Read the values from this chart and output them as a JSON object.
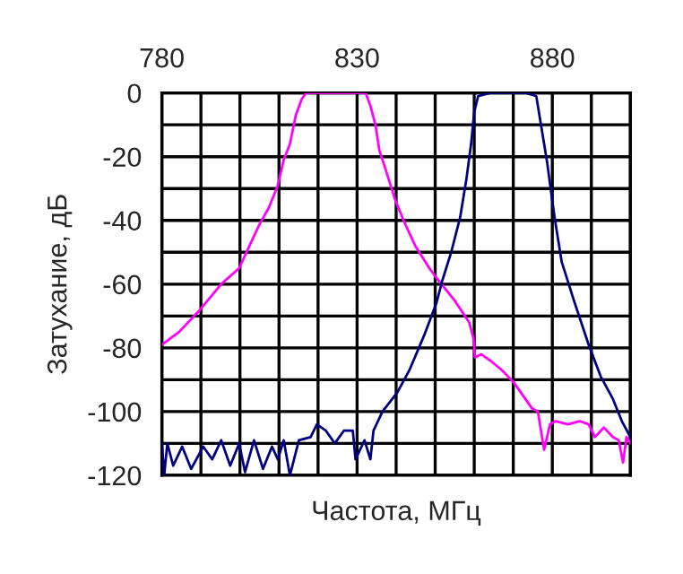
{
  "chart_data": {
    "type": "line",
    "xlabel": "Частота, МГц",
    "ylabel": "Затухание, дБ",
    "xlim": [
      780,
      900
    ],
    "xticks": [
      780,
      {
        "value": 790,
        "label": null
      },
      {
        "value": 800,
        "label": null
      },
      {
        "value": 810,
        "label": null
      },
      {
        "value": 820,
        "label": null
      },
      830,
      {
        "value": 840,
        "label": null
      },
      {
        "value": 850,
        "label": null
      },
      {
        "value": 860,
        "label": null
      },
      {
        "value": 870,
        "label": null
      },
      880,
      {
        "value": 890,
        "label": null
      },
      {
        "value": 900,
        "label": null
      }
    ],
    "ylim": [
      -120,
      0
    ],
    "yticks": [
      -120,
      {
        "value": -110,
        "label": null
      },
      -100,
      {
        "value": -90,
        "label": null
      },
      -80,
      {
        "value": -70,
        "label": null
      },
      -60,
      {
        "value": -50,
        "label": null
      },
      -40,
      {
        "value": -30,
        "label": null
      },
      -20,
      {
        "value": -10,
        "label": null
      },
      0
    ],
    "grid": true,
    "legend": false,
    "marker": "none",
    "line_style": "solid",
    "series": [
      {
        "color": "#ff00ff",
        "x": [
          780,
          784.4,
          789.8,
          795.2,
          799.8,
          802.8,
          805.1,
          807.4,
          809.7,
          811.2,
          812.8,
          814.3,
          815.8,
          816.9,
          832.2,
          833.4,
          834.7,
          835.7,
          837.3,
          839.6,
          841.9,
          844.9,
          848.5,
          850.3,
          854.9,
          858.7,
          859.8,
          860.2,
          861.8,
          864.1,
          867.1,
          870.2,
          872.5,
          874.8,
          876.3,
          877.9,
          879.4,
          880.9,
          884,
          887,
          889.3,
          890.9,
          893.2,
          895.5,
          897,
          898.1,
          899,
          900
        ],
        "values": [
          -79,
          -75,
          -68,
          -60,
          -55,
          -47,
          -41,
          -36,
          -29,
          -21,
          -16,
          -7,
          -2,
          0,
          0,
          -4,
          -10,
          -18,
          -24,
          -33,
          -40,
          -48,
          -55,
          -58,
          -65,
          -72,
          -77,
          -83,
          -82,
          -84,
          -87,
          -91,
          -95,
          -99,
          -100,
          -112,
          -104,
          -103,
          -104,
          -103,
          -104,
          -108,
          -105,
          -108,
          -109,
          -116,
          -108,
          -110
        ]
      },
      {
        "color": "#000080",
        "x": [
          780,
          780.6,
          781.4,
          782.9,
          785.2,
          787.5,
          790.6,
          792.9,
          795.2,
          797.5,
          799.8,
          801.3,
          803.6,
          805.9,
          808.2,
          809.7,
          811.2,
          812.8,
          815.1,
          818.1,
          819.7,
          822,
          824.3,
          826.6,
          828.9,
          829.6,
          831.9,
          833.4,
          834.2,
          836.5,
          840.3,
          843.4,
          847.2,
          850.3,
          851.8,
          854.1,
          856.4,
          858,
          859.2,
          860,
          861,
          864.1,
          873.3,
          875.9,
          877.1,
          878.7,
          879.9,
          880.7,
          882.4,
          885.5,
          889.3,
          892.4,
          895.5,
          897.8,
          900
        ],
        "values": [
          -110,
          -120,
          -110,
          -117,
          -111,
          -118,
          -111,
          -115,
          -109,
          -117,
          -110,
          -119,
          -109,
          -118,
          -111,
          -115,
          -109,
          -120,
          -109,
          -108,
          -104,
          -106,
          -110,
          -106,
          -106,
          -115,
          -109,
          -115,
          -106,
          -100,
          -94,
          -87,
          -76,
          -66,
          -59,
          -50,
          -39,
          -27,
          -16,
          -6,
          -1,
          0,
          0,
          -1,
          -10,
          -22,
          -33,
          -40,
          -53,
          -65,
          -79,
          -89,
          -96,
          -103,
          -108
        ]
      }
    ]
  }
}
